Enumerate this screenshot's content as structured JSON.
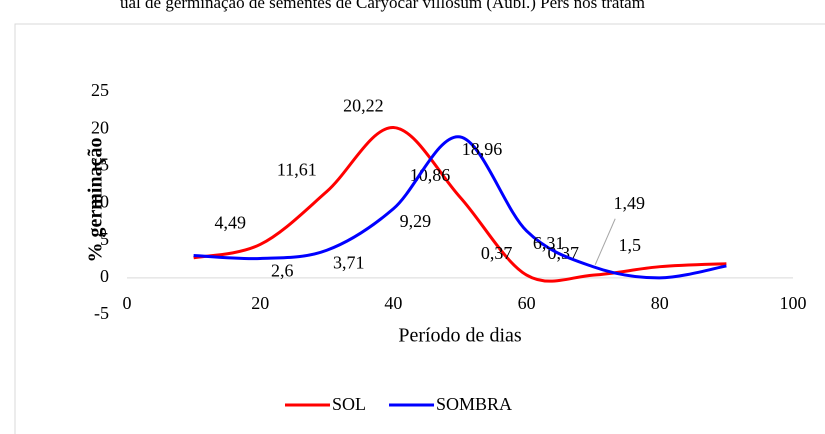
{
  "chart_data": {
    "type": "line",
    "title": "ual de germinação de sementes de Caryocar villosum (Aubl.) Pers nos tratam",
    "xlabel": "Período de dias",
    "ylabel": "% germinação",
    "x": [
      10,
      20,
      30,
      40,
      50,
      60,
      70,
      80,
      90
    ],
    "series": [
      {
        "name": "SOL",
        "color": "#ff0000",
        "values": [
          2.7,
          4.49,
          11.61,
          20.22,
          10.86,
          0.37,
          0.37,
          1.5,
          1.9
        ],
        "value_labels": [
          null,
          "4,49",
          "11,61",
          "20,22",
          "10,86",
          "0,37",
          "0,37",
          "1,5",
          null
        ]
      },
      {
        "name": "SOMBRA",
        "color": "#0000ff",
        "values": [
          3.0,
          2.6,
          3.71,
          9.29,
          18.96,
          6.31,
          1.49,
          0,
          1.6
        ],
        "value_labels": [
          null,
          "2,6",
          "3,71",
          "9,29",
          "18,96",
          "6,31",
          "1,49",
          null,
          null
        ]
      }
    ],
    "xlim": [
      0,
      100
    ],
    "xticks": [
      0,
      20,
      40,
      60,
      80,
      100
    ],
    "ylim": [
      -5,
      25
    ],
    "yticks": [
      -5,
      0,
      5,
      10,
      15,
      20,
      25
    ],
    "legend": "bottom"
  }
}
